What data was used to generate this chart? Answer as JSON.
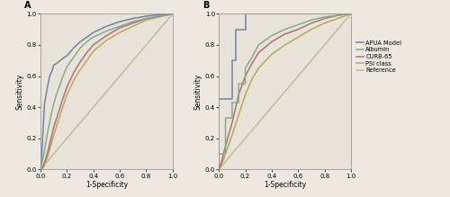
{
  "panel_A_label": "A",
  "panel_B_label": "B",
  "background_color": "#ede8e0",
  "plot_bg_color": "#e8e3d8",
  "xlabel": "1-Specificity",
  "ylabel": "Sensitivity",
  "xlim": [
    0.0,
    1.0
  ],
  "ylim": [
    0.0,
    1.0
  ],
  "xticks": [
    0.0,
    0.2,
    0.4,
    0.6,
    0.8,
    1.0
  ],
  "yticks": [
    0.0,
    0.2,
    0.4,
    0.6,
    0.8,
    1.0
  ],
  "legend_labels": [
    "APUA Model",
    "Albumin",
    "CURB-65",
    "PSI class",
    "Reference"
  ],
  "legend_colors": [
    "#7080a8",
    "#88aa88",
    "#b07070",
    "#b8a858",
    "#c8b89a"
  ],
  "line_width": 1.1,
  "fontsize_tick": 5.0,
  "fontsize_label": 5.5,
  "fontsize_legend": 4.8,
  "fontsize_panel": 7,
  "curves_A": {
    "apua": {
      "x": [
        0.0,
        0.01,
        0.03,
        0.05,
        0.07,
        0.09,
        0.1,
        0.12,
        0.15,
        0.18,
        0.2,
        0.25,
        0.3,
        0.35,
        0.4,
        0.5,
        0.6,
        0.7,
        0.8,
        0.9,
        1.0
      ],
      "y": [
        0.0,
        0.1,
        0.42,
        0.52,
        0.6,
        0.64,
        0.67,
        0.68,
        0.7,
        0.72,
        0.73,
        0.78,
        0.82,
        0.85,
        0.88,
        0.92,
        0.95,
        0.97,
        0.985,
        0.995,
        1.0
      ],
      "color": "#7080a8"
    },
    "albumin": {
      "x": [
        0.0,
        0.01,
        0.03,
        0.05,
        0.08,
        0.1,
        0.12,
        0.15,
        0.18,
        0.2,
        0.25,
        0.3,
        0.35,
        0.4,
        0.5,
        0.6,
        0.7,
        0.8,
        0.9,
        1.0
      ],
      "y": [
        0.0,
        0.04,
        0.12,
        0.22,
        0.35,
        0.42,
        0.48,
        0.55,
        0.62,
        0.66,
        0.72,
        0.78,
        0.82,
        0.85,
        0.89,
        0.92,
        0.95,
        0.97,
        0.985,
        1.0
      ],
      "color": "#88aa88"
    },
    "curb65": {
      "x": [
        0.0,
        0.02,
        0.04,
        0.06,
        0.08,
        0.1,
        0.13,
        0.16,
        0.2,
        0.25,
        0.3,
        0.35,
        0.4,
        0.5,
        0.6,
        0.7,
        0.8,
        0.9,
        1.0
      ],
      "y": [
        0.0,
        0.02,
        0.07,
        0.13,
        0.2,
        0.27,
        0.35,
        0.43,
        0.53,
        0.62,
        0.69,
        0.75,
        0.8,
        0.86,
        0.91,
        0.94,
        0.97,
        0.985,
        1.0
      ],
      "color": "#b07070"
    },
    "psi": {
      "x": [
        0.0,
        0.02,
        0.04,
        0.06,
        0.08,
        0.1,
        0.13,
        0.16,
        0.2,
        0.25,
        0.3,
        0.35,
        0.4,
        0.5,
        0.6,
        0.7,
        0.8,
        0.9,
        1.0
      ],
      "y": [
        0.0,
        0.01,
        0.05,
        0.1,
        0.16,
        0.22,
        0.3,
        0.38,
        0.48,
        0.57,
        0.64,
        0.7,
        0.76,
        0.83,
        0.88,
        0.92,
        0.96,
        0.98,
        1.0
      ],
      "color": "#b8a858"
    },
    "reference": {
      "x": [
        0.0,
        1.0
      ],
      "y": [
        0.0,
        1.0
      ],
      "color": "#c8b89a"
    }
  },
  "curves_B": {
    "apua": {
      "x": [
        0.0,
        0.0,
        0.05,
        0.05,
        0.1,
        0.1,
        0.13,
        0.13,
        0.2,
        0.2,
        0.5,
        0.5,
        1.0
      ],
      "y": [
        0.0,
        0.45,
        0.45,
        0.45,
        0.45,
        0.7,
        0.7,
        0.9,
        0.9,
        1.0,
        1.0,
        1.0,
        1.0
      ],
      "color": "#7080a8"
    },
    "albumin": {
      "x": [
        0.0,
        0.0,
        0.05,
        0.05,
        0.1,
        0.1,
        0.15,
        0.15,
        0.2,
        0.2,
        0.25,
        0.3,
        0.4,
        0.5,
        0.6,
        0.7,
        0.8,
        0.9,
        1.0
      ],
      "y": [
        0.0,
        0.1,
        0.1,
        0.33,
        0.33,
        0.43,
        0.43,
        0.55,
        0.55,
        0.65,
        0.72,
        0.8,
        0.86,
        0.9,
        0.93,
        0.96,
        0.98,
        0.99,
        1.0
      ],
      "color": "#88aa88"
    },
    "curb65": {
      "x": [
        0.0,
        0.02,
        0.05,
        0.1,
        0.15,
        0.2,
        0.25,
        0.3,
        0.4,
        0.5,
        0.6,
        0.7,
        0.8,
        0.9,
        1.0
      ],
      "y": [
        0.0,
        0.05,
        0.15,
        0.3,
        0.48,
        0.6,
        0.68,
        0.75,
        0.82,
        0.87,
        0.9,
        0.94,
        0.97,
        0.99,
        1.0
      ],
      "color": "#b07070"
    },
    "psi": {
      "x": [
        0.0,
        0.02,
        0.05,
        0.1,
        0.15,
        0.2,
        0.25,
        0.3,
        0.4,
        0.5,
        0.6,
        0.7,
        0.8,
        0.9,
        1.0
      ],
      "y": [
        0.0,
        0.03,
        0.1,
        0.22,
        0.35,
        0.48,
        0.58,
        0.65,
        0.74,
        0.8,
        0.85,
        0.9,
        0.94,
        0.97,
        1.0
      ],
      "color": "#b8a858"
    },
    "reference": {
      "x": [
        0.0,
        1.0
      ],
      "y": [
        0.0,
        1.0
      ],
      "color": "#c8b89a"
    }
  }
}
